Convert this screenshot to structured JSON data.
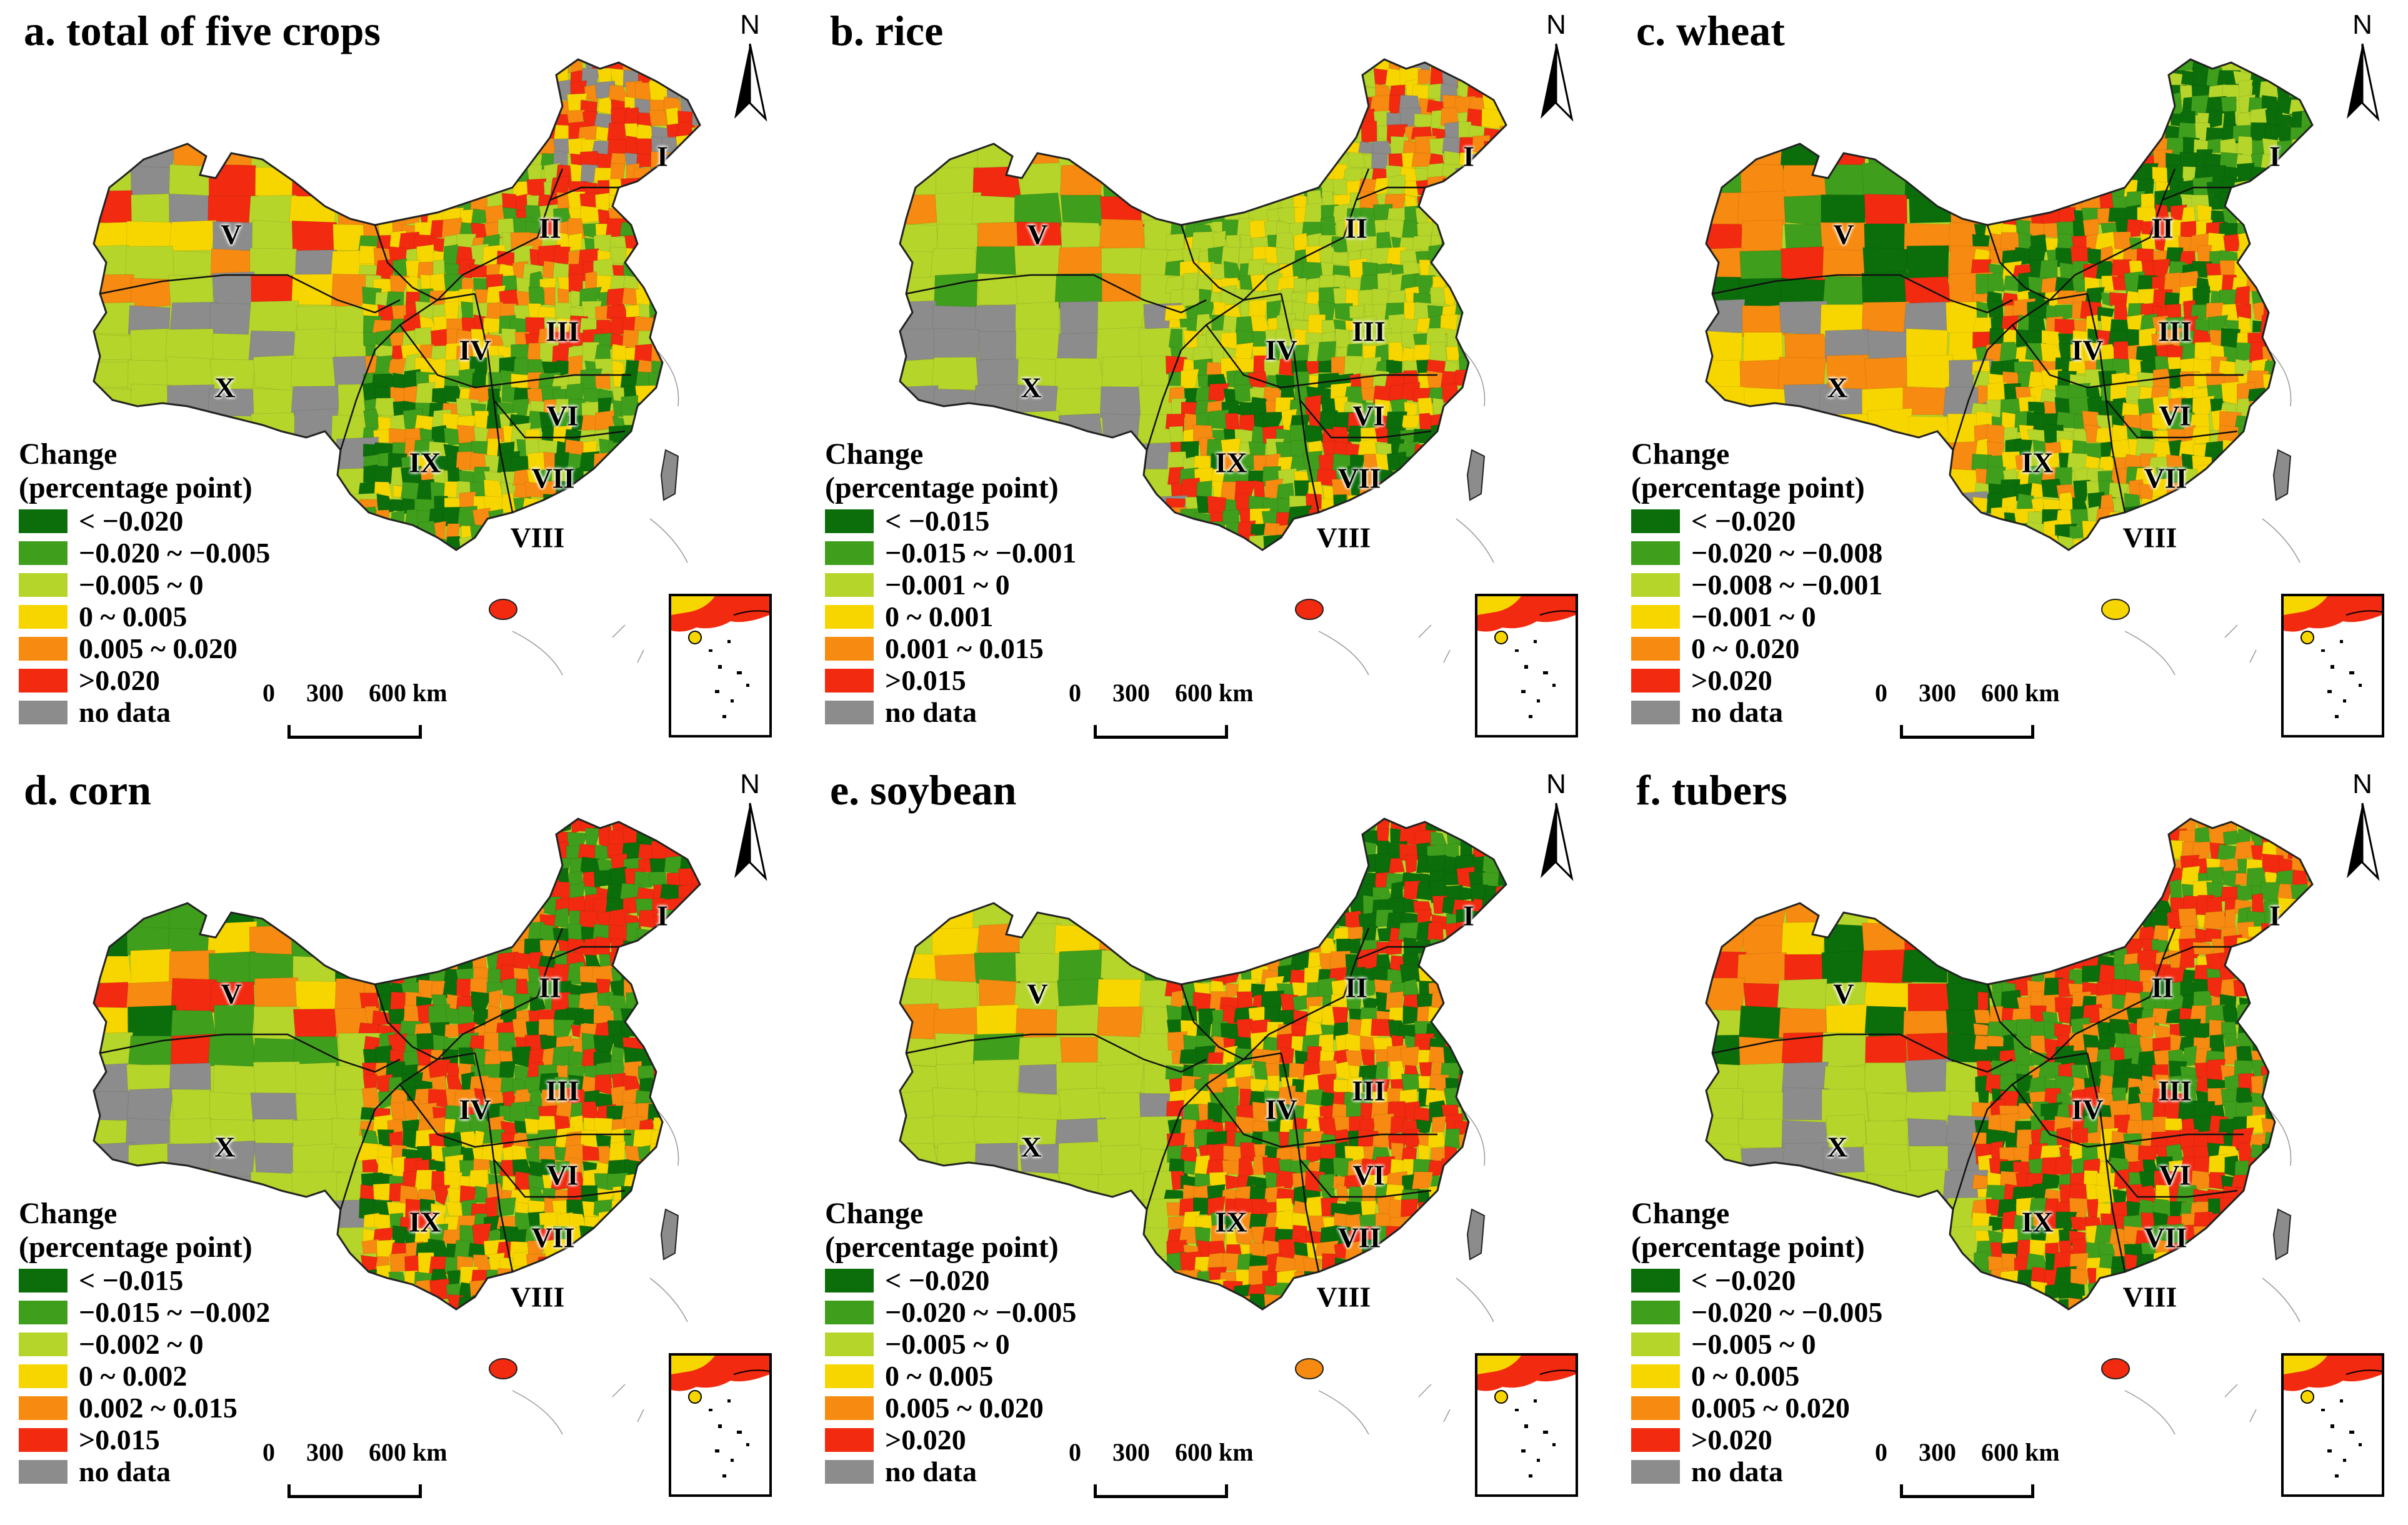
{
  "legend_title_line1": "Change",
  "legend_title_line2": "(percentage point)",
  "scale": {
    "labels": [
      "0",
      "300",
      "600 km"
    ]
  },
  "north_label": "N",
  "palette": [
    "#0b6e0b",
    "#3f9e1c",
    "#b5d52b",
    "#f7d600",
    "#f78a10",
    "#f22a10",
    "#8c8c8c"
  ],
  "regions": [
    "I",
    "II",
    "III",
    "IV",
    "V",
    "VI",
    "VII",
    "VIII",
    "IX",
    "X"
  ],
  "panels": [
    {
      "title": "a. total of five crops",
      "legend": [
        "< −0.020",
        "−0.020 ~ −0.005",
        "−0.005 ~ 0",
        "0 ~ 0.005",
        "0.005 ~ 0.020",
        ">0.020",
        "no data"
      ],
      "dominant": {
        "northwest": "mixed-yellow-red",
        "tibet": "light-green",
        "northeast": "red",
        "south": "green"
      }
    },
    {
      "title": "b. rice",
      "legend": [
        "< −0.015",
        "−0.015 ~ −0.001",
        "−0.001 ~ 0",
        "0 ~ 0.001",
        "0.001 ~ 0.015",
        ">0.015",
        "no data"
      ],
      "dominant": {
        "northwest": "light-green",
        "tibet": "light-green",
        "northeast": "red",
        "south": "green-red-mixed"
      }
    },
    {
      "title": "c. wheat",
      "legend": [
        "< −0.020",
        "−0.020 ~ −0.008",
        "−0.008 ~ −0.001",
        "−0.001 ~ 0",
        "0 ~ 0.020",
        ">0.020",
        "no data"
      ],
      "dominant": {
        "northwest": "orange-red",
        "tibet": "yellow",
        "northeast": "green",
        "south": "yellow-orange"
      }
    },
    {
      "title": "d. corn",
      "legend": [
        "< −0.015",
        "−0.015 ~ −0.002",
        "−0.002 ~ 0",
        "0 ~ 0.002",
        "0.002 ~ 0.015",
        ">0.015",
        "no data"
      ],
      "dominant": {
        "northwest": "mixed-red-green",
        "tibet": "light-green",
        "northeast": "red-green",
        "south": "yellow-orange"
      }
    },
    {
      "title": "e. soybean",
      "legend": [
        "< −0.020",
        "−0.020 ~ −0.005",
        "−0.005 ~ 0",
        "0 ~ 0.005",
        "0.005 ~ 0.020",
        ">0.020",
        "no data"
      ],
      "dominant": {
        "northwest": "light-green",
        "tibet": "light-green",
        "northeast": "green",
        "south": "red-orange"
      }
    },
    {
      "title": "f. tubers",
      "legend": [
        "< −0.020",
        "−0.020 ~ −0.005",
        "−0.005 ~ 0",
        "0 ~ 0.005",
        "0.005 ~ 0.020",
        ">0.020",
        "no data"
      ],
      "dominant": {
        "northwest": "red-yellow",
        "tibet": "light-green",
        "northeast": "red-mixed",
        "south": "red"
      }
    }
  ]
}
